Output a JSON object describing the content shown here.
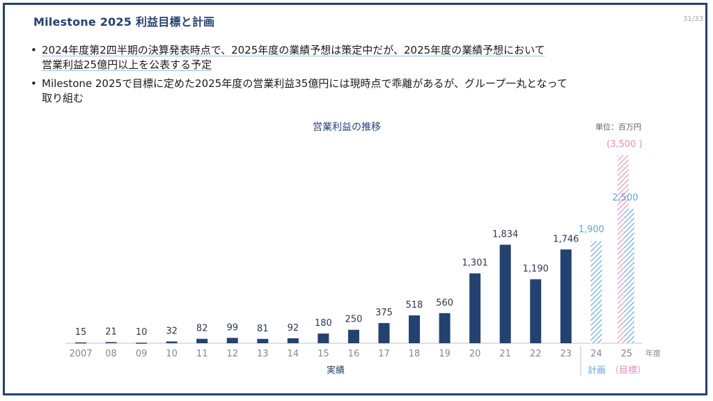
{
  "header": {
    "title": "Milestone 2025 利益目標と計画",
    "page": "31/33"
  },
  "bullets": [
    {
      "marker": "•",
      "lines": [
        "2024年度第2四半期の決算発表時点で、2025年度の業績予想は策定中だが、2025年度の業績予想において",
        "営業利益25億円以上を公表する予定"
      ]
    },
    {
      "marker": "•",
      "lines": [
        "Milestone 2025で目標に定めた2025年度の営業利益35億円には現時点で乖離があるが、グループ一丸となって",
        "取り組む"
      ]
    }
  ],
  "colors": {
    "actual": "#24426f",
    "plan": "#5ba3dc",
    "target": "#e98bb8",
    "axis_text": "#808894"
  },
  "chart_data": {
    "type": "bar",
    "title": "営業利益の推移",
    "unit": "単位：百万円",
    "x_axis_label": "年度",
    "categories": [
      "2007",
      "08",
      "09",
      "10",
      "11",
      "12",
      "13",
      "14",
      "15",
      "16",
      "17",
      "18",
      "19",
      "20",
      "21",
      "22",
      "23",
      "24",
      "25"
    ],
    "actual": {
      "label": "実績",
      "values": [
        15,
        21,
        10,
        32,
        82,
        99,
        81,
        92,
        180,
        250,
        375,
        518,
        560,
        1301,
        1834,
        1190,
        1746
      ],
      "value_labels": [
        "15",
        "21",
        "10",
        "32",
        "82",
        "99",
        "81",
        "92",
        "180",
        "250",
        "375",
        "518",
        "560",
        "1,301",
        "1,834",
        "1,190",
        "1,746"
      ]
    },
    "plan": {
      "label": "計画",
      "categories": [
        "24",
        "25"
      ],
      "values": [
        1900,
        2500
      ],
      "value_labels": [
        "1,900",
        "2,500"
      ]
    },
    "target": {
      "label": "（目標）",
      "categories": [
        "25"
      ],
      "values": [
        3500
      ],
      "value_label": "(3,500 )"
    },
    "y_range": [
      0,
      3500
    ]
  }
}
